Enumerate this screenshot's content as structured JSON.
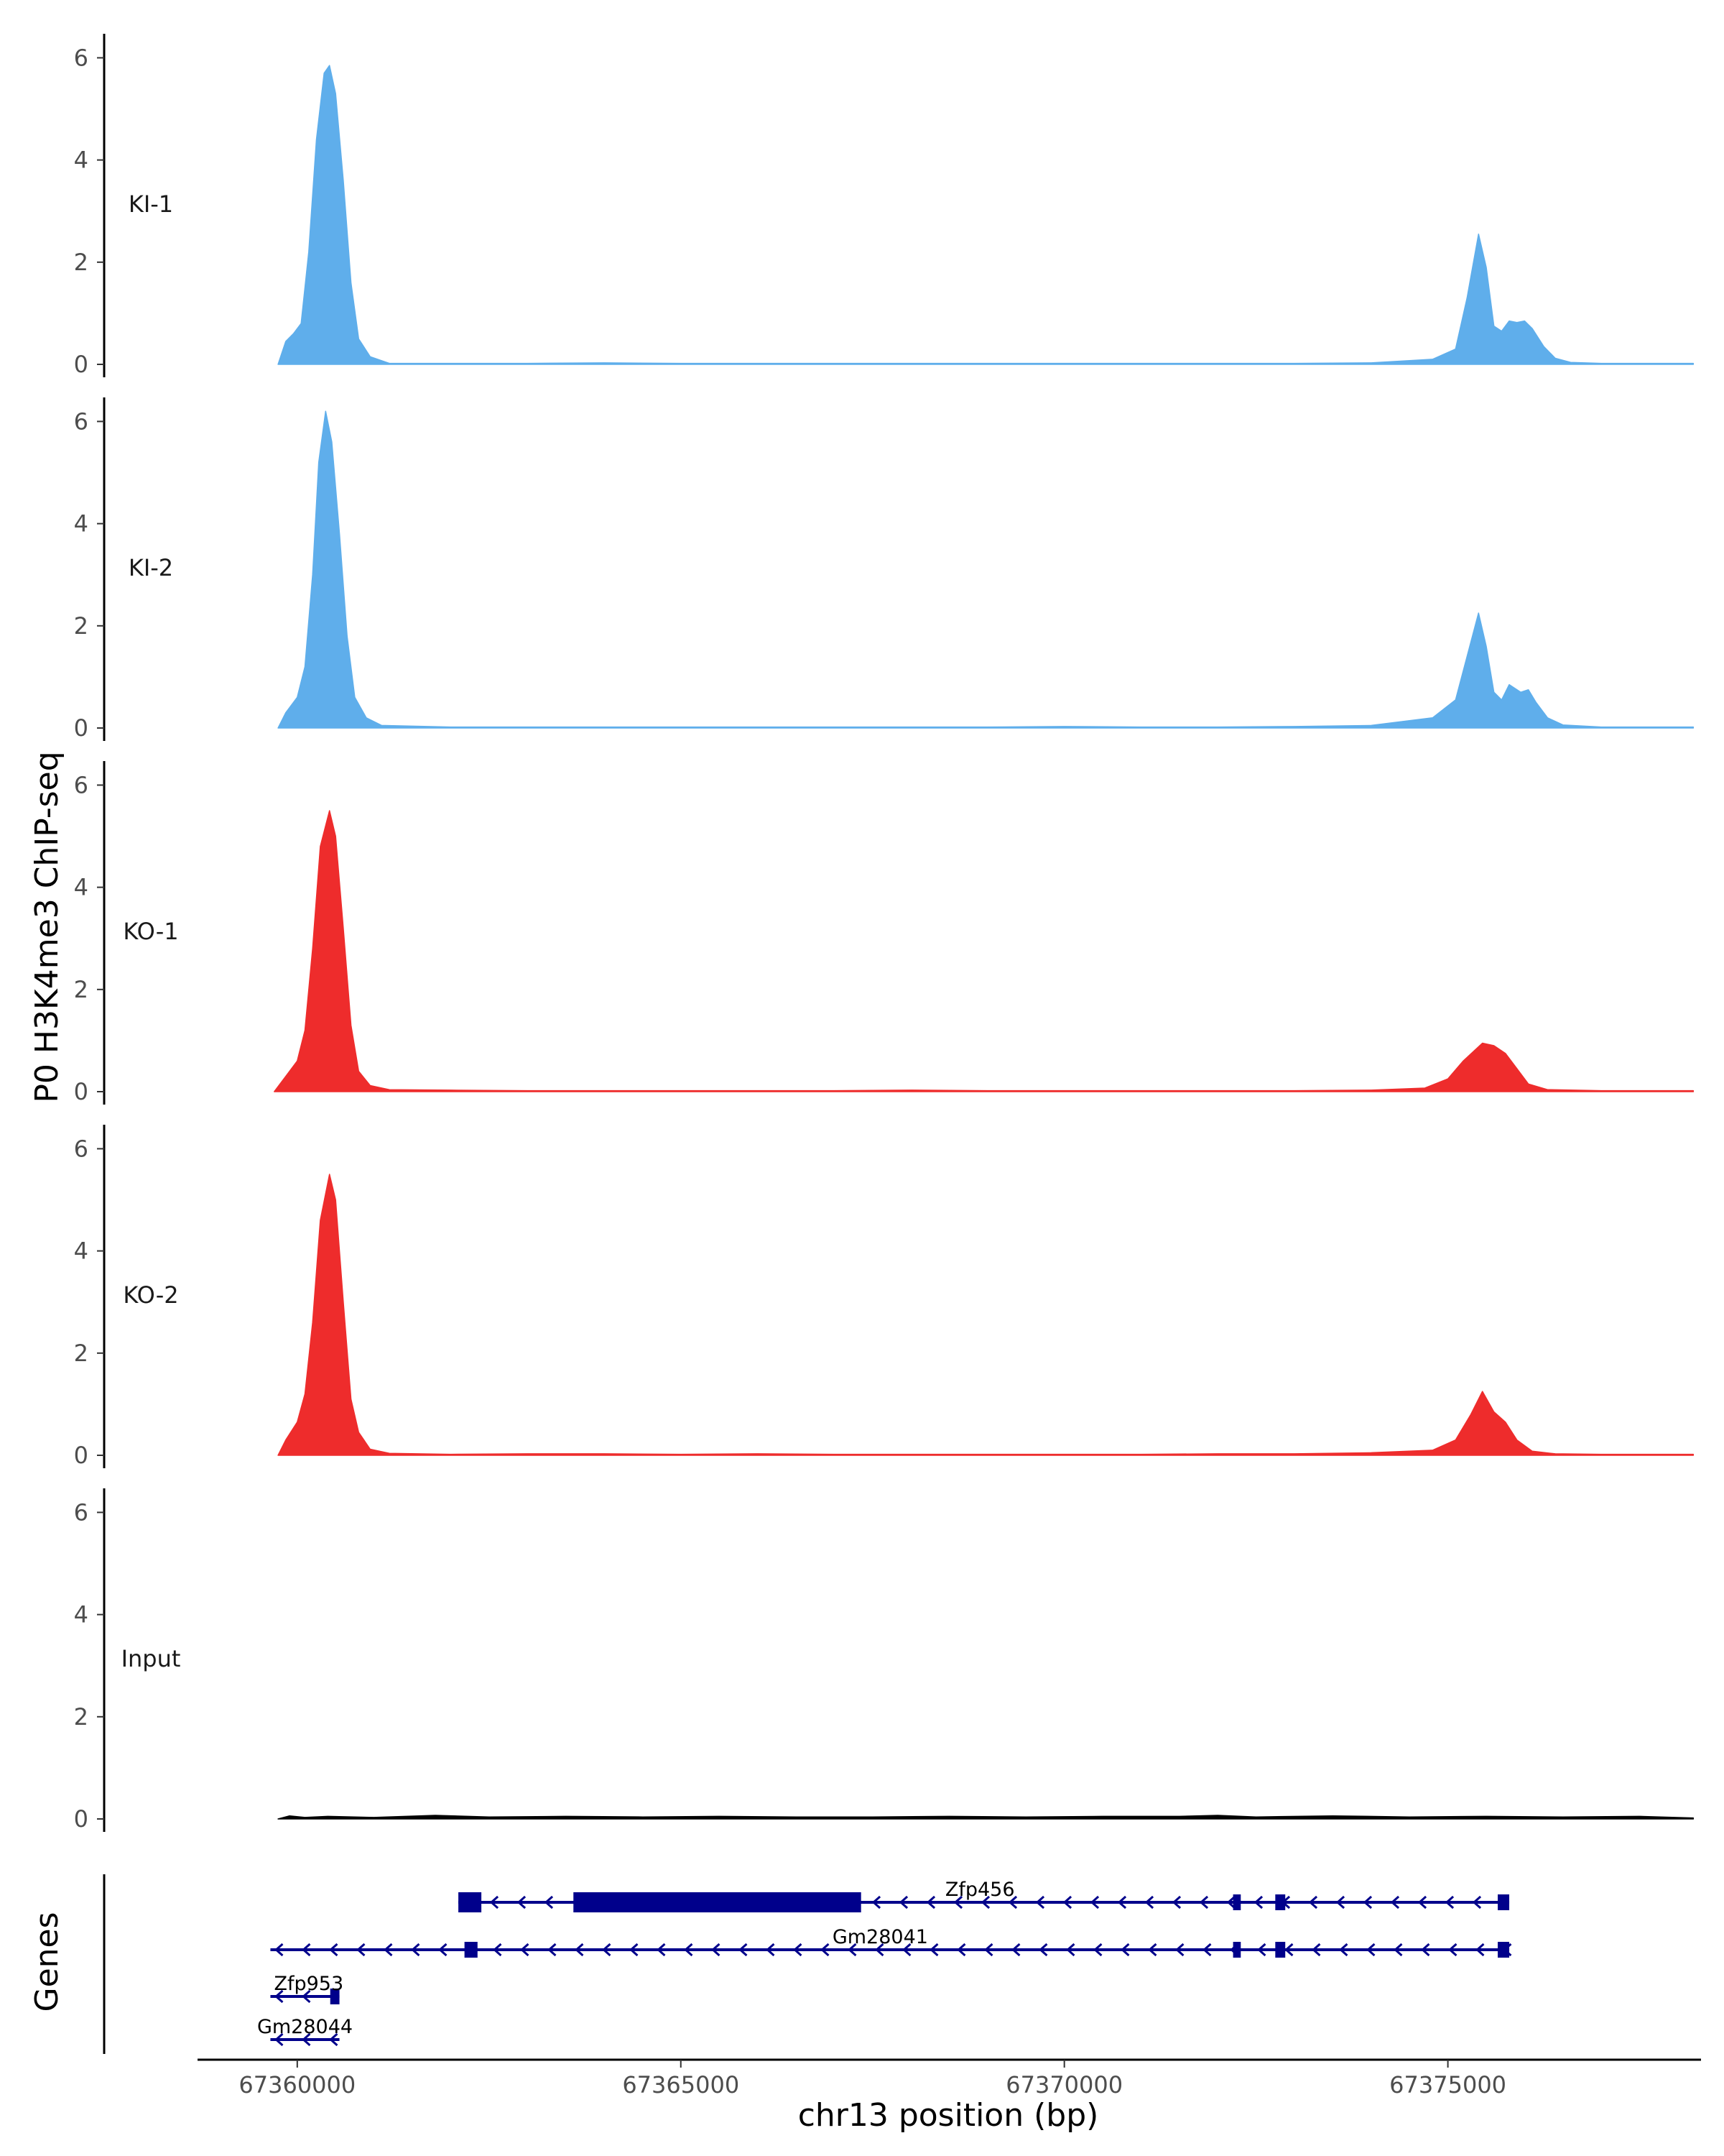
{
  "chart_data": {
    "type": "area",
    "y_axis_title": "P0 H3K4me3 ChIP-seq",
    "x_axis_title": "chr13 position (bp)",
    "genes_axis_title": "Genes",
    "x_range": [
      67358700,
      67378300
    ],
    "x_ticks": [
      {
        "value": 67360000,
        "label": "67360000"
      },
      {
        "value": 67365000,
        "label": "67365000"
      },
      {
        "value": 67370000,
        "label": "67370000"
      },
      {
        "value": 67375000,
        "label": "67375000"
      }
    ],
    "ylim": [
      0,
      6.4
    ],
    "y_ticks": [
      0,
      2,
      4,
      6
    ],
    "tracks": [
      {
        "name": "KI-1",
        "color": "#5FAEEB",
        "points": [
          [
            67359750,
            0
          ],
          [
            67359850,
            0.45
          ],
          [
            67359950,
            0.6
          ],
          [
            67360050,
            0.8
          ],
          [
            67360150,
            2.2
          ],
          [
            67360250,
            4.4
          ],
          [
            67360350,
            5.7
          ],
          [
            67360420,
            5.85
          ],
          [
            67360500,
            5.3
          ],
          [
            67360600,
            3.6
          ],
          [
            67360700,
            1.6
          ],
          [
            67360800,
            0.5
          ],
          [
            67360950,
            0.15
          ],
          [
            67361200,
            0.02
          ],
          [
            67362000,
            0.02
          ],
          [
            67363000,
            0.02
          ],
          [
            67364000,
            0.03
          ],
          [
            67365000,
            0.02
          ],
          [
            67366000,
            0.02
          ],
          [
            67367000,
            0.02
          ],
          [
            67368000,
            0.02
          ],
          [
            67369000,
            0.02
          ],
          [
            67370000,
            0.02
          ],
          [
            67371000,
            0.02
          ],
          [
            67372000,
            0.02
          ],
          [
            67373000,
            0.02
          ],
          [
            67374000,
            0.03
          ],
          [
            67374800,
            0.1
          ],
          [
            67375100,
            0.3
          ],
          [
            67375250,
            1.3
          ],
          [
            67375400,
            2.55
          ],
          [
            67375500,
            1.9
          ],
          [
            67375600,
            0.75
          ],
          [
            67375700,
            0.65
          ],
          [
            67375800,
            0.85
          ],
          [
            67375900,
            0.82
          ],
          [
            67376000,
            0.85
          ],
          [
            67376100,
            0.7
          ],
          [
            67376250,
            0.35
          ],
          [
            67376400,
            0.12
          ],
          [
            67376600,
            0.04
          ],
          [
            67377000,
            0.02
          ],
          [
            67378200,
            0.02
          ]
        ]
      },
      {
        "name": "KI-2",
        "color": "#5FAEEB",
        "points": [
          [
            67359750,
            0
          ],
          [
            67359850,
            0.3
          ],
          [
            67360000,
            0.6
          ],
          [
            67360100,
            1.2
          ],
          [
            67360200,
            3.0
          ],
          [
            67360280,
            5.2
          ],
          [
            67360370,
            6.2
          ],
          [
            67360450,
            5.6
          ],
          [
            67360550,
            3.8
          ],
          [
            67360650,
            1.8
          ],
          [
            67360750,
            0.6
          ],
          [
            67360900,
            0.2
          ],
          [
            67361100,
            0.05
          ],
          [
            67362000,
            0.02
          ],
          [
            67363000,
            0.02
          ],
          [
            67364000,
            0.02
          ],
          [
            67365000,
            0.02
          ],
          [
            67366000,
            0.02
          ],
          [
            67367000,
            0.02
          ],
          [
            67368000,
            0.02
          ],
          [
            67369000,
            0.02
          ],
          [
            67370000,
            0.03
          ],
          [
            67371000,
            0.02
          ],
          [
            67372000,
            0.02
          ],
          [
            67373000,
            0.03
          ],
          [
            67374000,
            0.05
          ],
          [
            67374800,
            0.2
          ],
          [
            67375100,
            0.55
          ],
          [
            67375250,
            1.4
          ],
          [
            67375400,
            2.25
          ],
          [
            67375500,
            1.6
          ],
          [
            67375600,
            0.7
          ],
          [
            67375700,
            0.55
          ],
          [
            67375800,
            0.85
          ],
          [
            67375950,
            0.7
          ],
          [
            67376050,
            0.75
          ],
          [
            67376150,
            0.5
          ],
          [
            67376300,
            0.2
          ],
          [
            67376500,
            0.06
          ],
          [
            67377000,
            0.02
          ],
          [
            67378200,
            0.02
          ]
        ]
      },
      {
        "name": "KO-1",
        "color": "#EE2C2C",
        "points": [
          [
            67359700,
            0
          ],
          [
            67359850,
            0.3
          ],
          [
            67360000,
            0.6
          ],
          [
            67360100,
            1.2
          ],
          [
            67360200,
            2.8
          ],
          [
            67360300,
            4.8
          ],
          [
            67360420,
            5.5
          ],
          [
            67360500,
            5.0
          ],
          [
            67360600,
            3.2
          ],
          [
            67360700,
            1.3
          ],
          [
            67360800,
            0.4
          ],
          [
            67360950,
            0.12
          ],
          [
            67361200,
            0.04
          ],
          [
            67362000,
            0.03
          ],
          [
            67363000,
            0.02
          ],
          [
            67364000,
            0.02
          ],
          [
            67365000,
            0.02
          ],
          [
            67366000,
            0.02
          ],
          [
            67367000,
            0.02
          ],
          [
            67368000,
            0.03
          ],
          [
            67369000,
            0.02
          ],
          [
            67370000,
            0.02
          ],
          [
            67371000,
            0.02
          ],
          [
            67372000,
            0.02
          ],
          [
            67373000,
            0.02
          ],
          [
            67374000,
            0.03
          ],
          [
            67374700,
            0.07
          ],
          [
            67375000,
            0.25
          ],
          [
            67375200,
            0.6
          ],
          [
            67375450,
            0.95
          ],
          [
            67375600,
            0.9
          ],
          [
            67375750,
            0.75
          ],
          [
            67375900,
            0.45
          ],
          [
            67376050,
            0.15
          ],
          [
            67376300,
            0.04
          ],
          [
            67377000,
            0.02
          ],
          [
            67378200,
            0.02
          ]
        ]
      },
      {
        "name": "KO-2",
        "color": "#EE2C2C",
        "points": [
          [
            67359750,
            0
          ],
          [
            67359850,
            0.3
          ],
          [
            67360000,
            0.65
          ],
          [
            67360100,
            1.2
          ],
          [
            67360200,
            2.6
          ],
          [
            67360300,
            4.6
          ],
          [
            67360420,
            5.5
          ],
          [
            67360500,
            5.0
          ],
          [
            67360600,
            3.0
          ],
          [
            67360700,
            1.1
          ],
          [
            67360800,
            0.45
          ],
          [
            67360950,
            0.12
          ],
          [
            67361200,
            0.04
          ],
          [
            67362000,
            0.02
          ],
          [
            67363000,
            0.03
          ],
          [
            67364000,
            0.03
          ],
          [
            67365000,
            0.02
          ],
          [
            67366000,
            0.03
          ],
          [
            67367000,
            0.02
          ],
          [
            67368000,
            0.02
          ],
          [
            67369000,
            0.02
          ],
          [
            67370000,
            0.02
          ],
          [
            67371000,
            0.02
          ],
          [
            67372000,
            0.03
          ],
          [
            67373000,
            0.03
          ],
          [
            67374000,
            0.05
          ],
          [
            67374800,
            0.1
          ],
          [
            67375100,
            0.3
          ],
          [
            67375300,
            0.8
          ],
          [
            67375450,
            1.25
          ],
          [
            67375600,
            0.85
          ],
          [
            67375750,
            0.65
          ],
          [
            67375900,
            0.3
          ],
          [
            67376100,
            0.08
          ],
          [
            67376400,
            0.03
          ],
          [
            67377000,
            0.02
          ],
          [
            67378200,
            0.02
          ]
        ]
      },
      {
        "name": "Input",
        "color": "#000000",
        "points": [
          [
            67359750,
            0
          ],
          [
            67359900,
            0.06
          ],
          [
            67360100,
            0.03
          ],
          [
            67360400,
            0.05
          ],
          [
            67361000,
            0.03
          ],
          [
            67361800,
            0.07
          ],
          [
            67362500,
            0.04
          ],
          [
            67363500,
            0.05
          ],
          [
            67364500,
            0.04
          ],
          [
            67365500,
            0.05
          ],
          [
            67366500,
            0.04
          ],
          [
            67367500,
            0.04
          ],
          [
            67368500,
            0.05
          ],
          [
            67369500,
            0.04
          ],
          [
            67370500,
            0.05
          ],
          [
            67371500,
            0.05
          ],
          [
            67372000,
            0.07
          ],
          [
            67372500,
            0.04
          ],
          [
            67373500,
            0.06
          ],
          [
            67374500,
            0.04
          ],
          [
            67375500,
            0.05
          ],
          [
            67376500,
            0.04
          ],
          [
            67377500,
            0.05
          ],
          [
            67378200,
            0.02
          ]
        ]
      }
    ],
    "genes": [
      {
        "name": "Zfp456",
        "start": 67362100,
        "end": 67375800,
        "strand": "-",
        "label_pos": 67368900,
        "exons": [
          [
            67362100,
            67362400,
            "thick"
          ],
          [
            67363600,
            67367350,
            "thick"
          ],
          [
            67372200,
            67372300,
            "thin"
          ],
          [
            67372750,
            67372880,
            "thin"
          ],
          [
            67375650,
            67375800,
            "thin"
          ]
        ]
      },
      {
        "name": "Gm28041",
        "start": 67359650,
        "end": 67375800,
        "strand": "-",
        "label_pos": 67367600,
        "exons": [
          [
            67362180,
            67362350,
            "thin"
          ],
          [
            67372200,
            67372300,
            "thin"
          ],
          [
            67372750,
            67372880,
            "thin"
          ],
          [
            67375650,
            67375800,
            "thin"
          ]
        ]
      },
      {
        "name": "Zfp953",
        "start": 67359650,
        "end": 67360550,
        "strand": "-",
        "label_pos": 67360150,
        "exons": [
          [
            67360430,
            67360550,
            "thin"
          ]
        ]
      },
      {
        "name": "Gm28044",
        "start": 67359650,
        "end": 67360550,
        "strand": "-",
        "label_pos": 67360100,
        "exons": []
      }
    ]
  }
}
